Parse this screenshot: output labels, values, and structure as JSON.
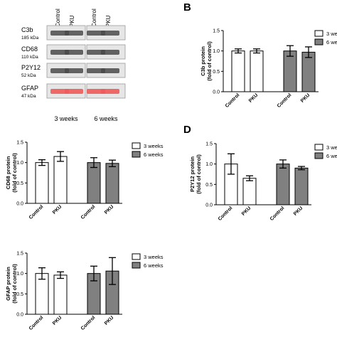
{
  "blot": {
    "lanes": [
      "Control",
      "PKU",
      "Control",
      "PKU"
    ],
    "proteins": [
      {
        "name": "C3b",
        "kda": "185 kDa"
      },
      {
        "name": "CD68",
        "kda": "110 kDa"
      },
      {
        "name": "P2Y12",
        "kda": "52 kDa"
      },
      {
        "name": "GFAP",
        "kda": "47 kDa"
      }
    ],
    "groups": [
      "3 weeks",
      "6 weeks"
    ],
    "colors": {
      "band_dark": "#4a4a4a",
      "band_gfap": "#f05a5a",
      "background": "#e6e6e6"
    }
  },
  "panel_letters": {
    "b": "B",
    "d": "D"
  },
  "colors": {
    "three_weeks_fill": "#ffffff",
    "six_weeks_fill": "#808080",
    "stroke": "#000000"
  },
  "chart_data": [
    {
      "id": "c3b",
      "type": "bar",
      "ylabel": [
        "C3b protein",
        "(fold of control)"
      ],
      "ylim": [
        0,
        1.5
      ],
      "yticks": [
        "0.0",
        "0.5",
        "1.0",
        "1.5"
      ],
      "categories": [
        "Control",
        "PKU",
        "Control",
        "PKU"
      ],
      "series": [
        {
          "name": "3 weeks"
        },
        {
          "name": "6 weeks"
        }
      ],
      "bar_series": [
        0,
        0,
        1,
        1
      ],
      "values": [
        1.0,
        1.0,
        1.0,
        0.97
      ],
      "errors": [
        0.05,
        0.05,
        0.13,
        0.13
      ],
      "legend_position": "top-right"
    },
    {
      "id": "cd68",
      "type": "bar",
      "ylabel": [
        "CD68 protein",
        "(fold of control)"
      ],
      "ylim": [
        0,
        1.5
      ],
      "yticks": [
        "0.0",
        "0.5",
        "1.0",
        "1.5"
      ],
      "categories": [
        "Control",
        "PKU",
        "Control",
        "PKU"
      ],
      "series": [
        {
          "name": "3 weeks"
        },
        {
          "name": "6 weeks"
        }
      ],
      "bar_series": [
        0,
        0,
        1,
        1
      ],
      "values": [
        1.0,
        1.15,
        1.0,
        0.98
      ],
      "errors": [
        0.07,
        0.12,
        0.12,
        0.08
      ],
      "legend_position": "top-right"
    },
    {
      "id": "p2y12",
      "type": "bar",
      "ylabel": [
        "P2Y12 protein",
        "(fold of control)"
      ],
      "ylim": [
        0,
        1.5
      ],
      "yticks": [
        "0.0",
        "0.5",
        "1.0",
        "1.5"
      ],
      "categories": [
        "Control",
        "PKU",
        "Control",
        "PKU"
      ],
      "series": [
        {
          "name": "3 weeks"
        },
        {
          "name": "6 weeks"
        }
      ],
      "bar_series": [
        0,
        0,
        1,
        1
      ],
      "values": [
        1.0,
        0.65,
        1.0,
        0.9
      ],
      "errors": [
        0.25,
        0.06,
        0.1,
        0.04
      ],
      "legend_position": "top-right"
    },
    {
      "id": "gfap",
      "type": "bar",
      "ylabel": [
        "GFAP protein",
        "(fold of control)"
      ],
      "ylim": [
        0,
        1.5
      ],
      "yticks": [
        "0.0",
        "0.5",
        "1.0",
        "1.5"
      ],
      "categories": [
        "Control",
        "PKU",
        "Control",
        "PKU"
      ],
      "series": [
        {
          "name": "3 weeks"
        },
        {
          "name": "6 weeks"
        }
      ],
      "bar_series": [
        0,
        0,
        1,
        1
      ],
      "values": [
        1.0,
        0.96,
        1.0,
        1.06
      ],
      "errors": [
        0.14,
        0.08,
        0.18,
        0.33
      ],
      "legend_position": "top-right"
    }
  ]
}
